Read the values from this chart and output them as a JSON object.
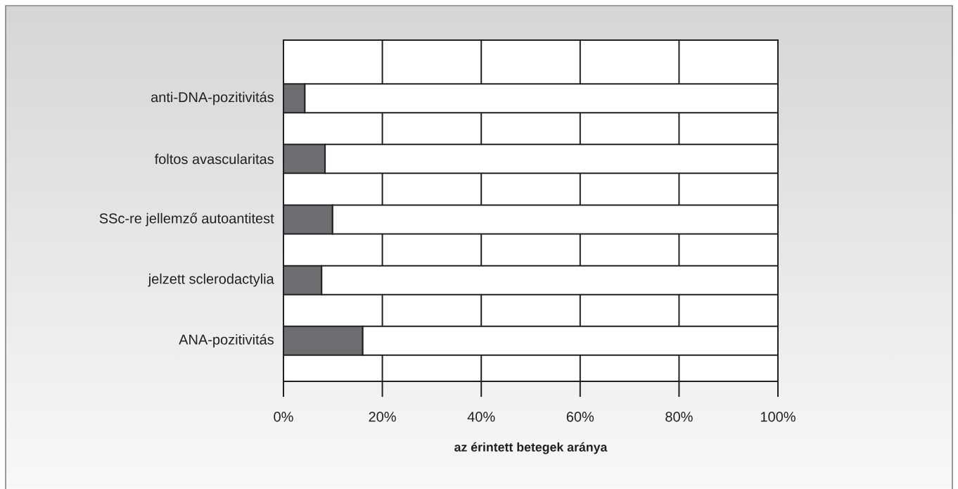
{
  "chart_data": {
    "type": "bar",
    "orientation": "horizontal",
    "stacked": true,
    "xlabel": "az érintett betegek aránya",
    "categories": [
      "anti-DNA-pozitivitás",
      "foltos avascularitas",
      "SSc-re jellemző autoantitest",
      "jelzett sclerodactylia",
      "ANA-pozitivitás"
    ],
    "series": [
      {
        "color": "#6d6e71",
        "values": [
          4.3,
          8.4,
          9.9,
          7.7,
          16.0
        ]
      },
      {
        "color": "#ffffff",
        "values": [
          95.7,
          91.6,
          90.1,
          92.3,
          84.0
        ]
      }
    ],
    "xlim": [
      0,
      100
    ],
    "xticks": [
      {
        "value": 0,
        "label": "0%"
      },
      {
        "value": 20,
        "label": "20%"
      },
      {
        "value": 40,
        "label": "40%"
      },
      {
        "value": 60,
        "label": "60%"
      },
      {
        "value": 80,
        "label": "80%"
      },
      {
        "value": 100,
        "label": "100%"
      }
    ],
    "grid": "x"
  }
}
